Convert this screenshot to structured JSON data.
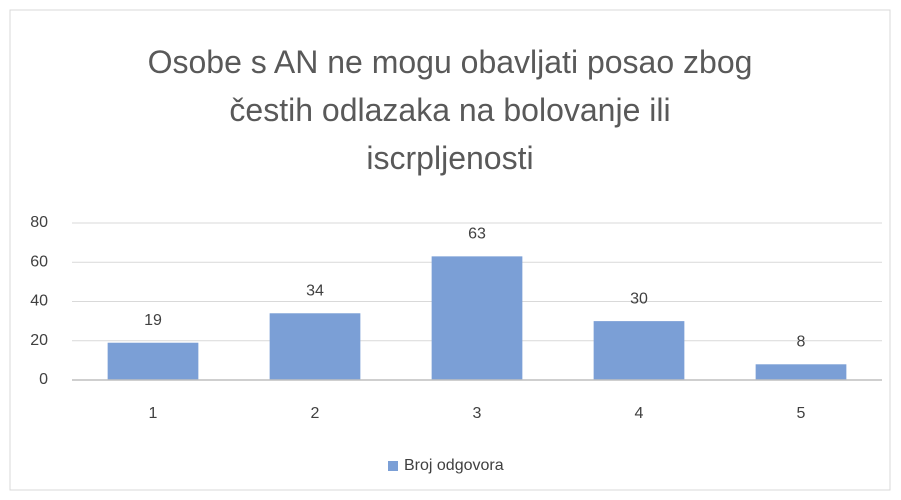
{
  "chart_data": {
    "type": "bar",
    "title": "Osobe s AN ne mogu obavljati posao zbog čestih odlazaka na bolovanje ili iscrpljenosti",
    "categories": [
      "1",
      "2",
      "3",
      "4",
      "5"
    ],
    "series": [
      {
        "name": "Broj odgovora",
        "color": "#7b9fd6",
        "values": [
          19,
          34,
          63,
          30,
          8
        ]
      }
    ],
    "ylim": [
      0,
      80
    ],
    "yticks": [
      0,
      20,
      40,
      60,
      80
    ],
    "grid": true,
    "legend": "bottom"
  }
}
